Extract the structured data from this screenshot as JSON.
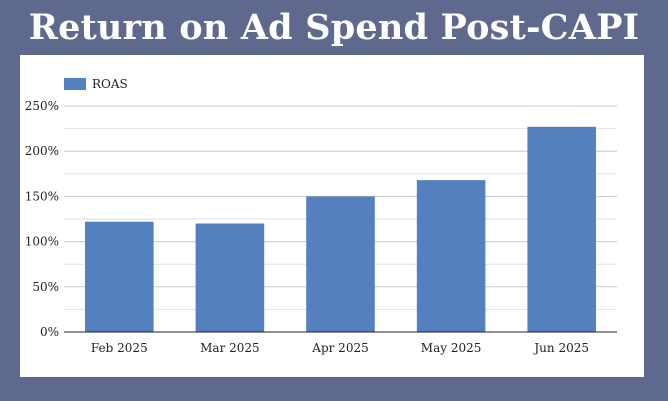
{
  "page": {
    "title": "Return on Ad Spend Post-CAPI"
  },
  "chart_data": {
    "type": "bar",
    "title": "Return on Ad Spend Post-CAPI",
    "xlabel": "",
    "ylabel": "",
    "categories": [
      "Feb 2025",
      "Mar 2025",
      "Apr 2025",
      "May 2025",
      "Jun 2025"
    ],
    "series": [
      {
        "name": "ROAS",
        "values": [
          122,
          120,
          150,
          168,
          227
        ],
        "color": "#5580c0"
      }
    ],
    "ylim": [
      0,
      250
    ],
    "yticks": [
      0,
      50,
      100,
      150,
      200,
      250
    ],
    "ytick_labels": [
      "0%",
      "50%",
      "100%",
      "150%",
      "200%",
      "250%"
    ],
    "grid": true,
    "legend_position": "top-left",
    "colors": {
      "background": "#5f688d",
      "panel": "#ffffff",
      "grid": "#cccccc",
      "axis": "#222222"
    }
  }
}
